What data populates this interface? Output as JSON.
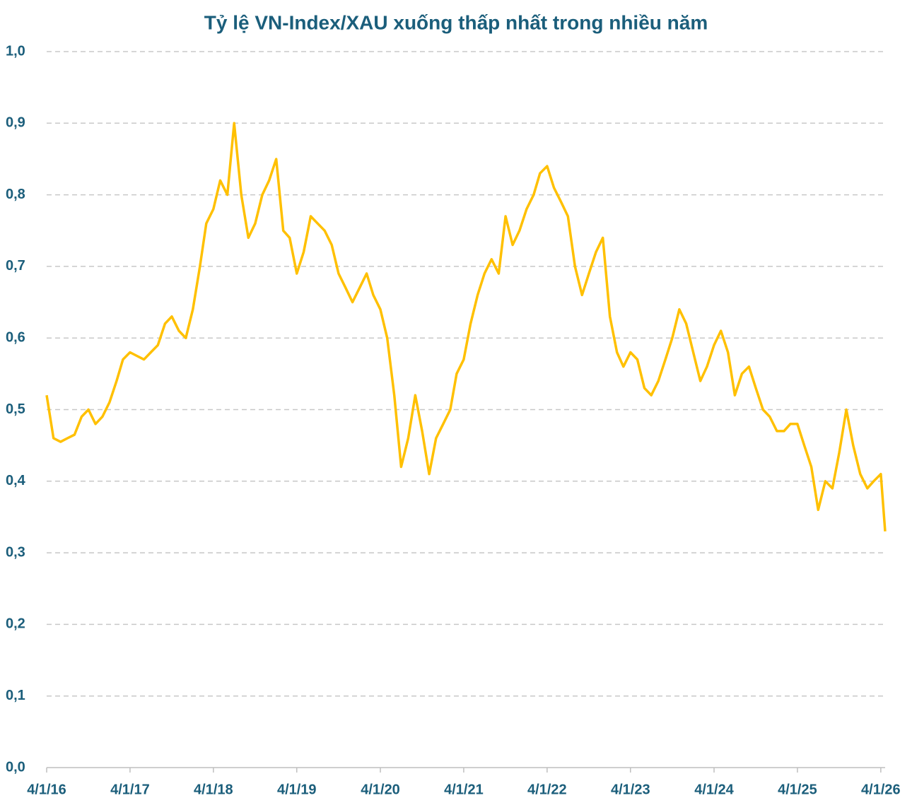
{
  "chart_data": {
    "type": "line",
    "title": "Tỷ lệ VN-Index/XAU xuống thấp nhất trong nhiều năm",
    "x": [
      "4/1/16",
      "5/1/16",
      "6/1/16",
      "7/1/16",
      "8/1/16",
      "9/1/16",
      "10/1/16",
      "11/1/16",
      "12/1/16",
      "1/1/17",
      "2/1/17",
      "3/1/17",
      "4/1/17",
      "5/1/17",
      "6/1/17",
      "7/1/17",
      "8/1/17",
      "9/1/17",
      "10/1/17",
      "11/1/17",
      "12/1/17",
      "1/1/18",
      "2/1/18",
      "3/1/18",
      "4/1/18",
      "5/1/18",
      "6/1/18",
      "7/1/18",
      "8/1/18",
      "9/1/18",
      "10/1/18",
      "11/1/18",
      "12/1/18",
      "1/1/19",
      "2/1/19",
      "3/1/19",
      "4/1/19",
      "5/1/19",
      "6/1/19",
      "7/1/19",
      "8/1/19",
      "9/1/19",
      "10/1/19",
      "11/1/19",
      "12/1/19",
      "1/1/20",
      "2/1/20",
      "3/1/20",
      "4/1/20",
      "5/1/20",
      "6/1/20",
      "7/1/20",
      "8/1/20",
      "9/1/20",
      "10/1/20",
      "11/1/20",
      "12/1/20",
      "1/1/21",
      "2/1/21",
      "3/1/21",
      "4/1/21",
      "5/1/21",
      "6/1/21",
      "7/1/21",
      "8/1/21",
      "9/1/21",
      "10/1/21",
      "11/1/21",
      "12/1/21",
      "1/1/22",
      "2/1/22",
      "3/1/22",
      "4/1/22",
      "5/1/22",
      "6/1/22",
      "7/1/22",
      "8/1/22",
      "9/1/22",
      "10/1/22",
      "11/1/22",
      "12/1/22",
      "1/1/23",
      "2/1/23",
      "3/1/23",
      "4/1/23",
      "5/1/23",
      "6/1/23",
      "7/1/23",
      "8/1/23",
      "9/1/23",
      "10/1/23",
      "11/1/23",
      "12/1/23",
      "1/1/24",
      "2/1/24",
      "3/1/24",
      "4/1/24",
      "5/1/24",
      "6/1/24",
      "7/1/24",
      "8/1/24",
      "9/1/24",
      "10/1/24",
      "11/1/24",
      "12/1/24",
      "1/1/25",
      "2/1/25",
      "3/1/25",
      "4/1/25",
      "5/1/25",
      "6/1/25",
      "7/1/25",
      "8/1/25",
      "9/1/25",
      "10/1/25",
      "11/1/25",
      "12/1/25",
      "1/1/26",
      "2/1/26",
      "3/1/26",
      "4/1/26",
      "4/20/26"
    ],
    "series": [
      {
        "name": "VN-Index/XAU",
        "color": "#ffc000",
        "values": [
          0.52,
          0.46,
          0.455,
          0.46,
          0.465,
          0.49,
          0.5,
          0.48,
          0.49,
          0.51,
          0.54,
          0.57,
          0.58,
          0.575,
          0.57,
          0.58,
          0.59,
          0.62,
          0.63,
          0.61,
          0.6,
          0.64,
          0.7,
          0.76,
          0.78,
          0.82,
          0.8,
          0.9,
          0.8,
          0.74,
          0.76,
          0.8,
          0.82,
          0.85,
          0.75,
          0.74,
          0.69,
          0.72,
          0.77,
          0.76,
          0.75,
          0.73,
          0.69,
          0.67,
          0.65,
          0.67,
          0.69,
          0.66,
          0.64,
          0.6,
          0.52,
          0.42,
          0.46,
          0.52,
          0.47,
          0.41,
          0.46,
          0.48,
          0.5,
          0.55,
          0.57,
          0.62,
          0.66,
          0.69,
          0.71,
          0.69,
          0.77,
          0.73,
          0.75,
          0.78,
          0.8,
          0.83,
          0.84,
          0.81,
          0.79,
          0.77,
          0.7,
          0.66,
          0.69,
          0.72,
          0.74,
          0.63,
          0.58,
          0.56,
          0.58,
          0.57,
          0.53,
          0.52,
          0.54,
          0.57,
          0.6,
          0.64,
          0.62,
          0.58,
          0.54,
          0.56,
          0.59,
          0.61,
          0.58,
          0.52,
          0.55,
          0.56,
          0.53,
          0.5,
          0.49,
          0.47,
          0.47,
          0.48,
          0.48,
          0.45,
          0.42,
          0.36,
          0.4,
          0.39,
          0.44,
          0.5,
          0.45,
          0.41,
          0.39,
          0.4,
          0.41,
          0.33
        ]
      }
    ],
    "xlim": [
      "4/1/16",
      "4/20/26"
    ],
    "xticks": [
      "4/1/16",
      "4/1/17",
      "4/1/18",
      "4/1/19",
      "4/1/20",
      "4/1/21",
      "4/1/22",
      "4/1/23",
      "4/1/24",
      "4/1/25",
      "4/1/26"
    ],
    "ylim": [
      0,
      1
    ],
    "yticks": [
      {
        "value": 0,
        "label": "0,0"
      },
      {
        "value": 0.1,
        "label": "0,1"
      },
      {
        "value": 0.2,
        "label": "0,2"
      },
      {
        "value": 0.3,
        "label": "0,3"
      },
      {
        "value": 0.4,
        "label": "0,4"
      },
      {
        "value": 0.5,
        "label": "0,5"
      },
      {
        "value": 0.6,
        "label": "0,6"
      },
      {
        "value": 0.7,
        "label": "0,7"
      },
      {
        "value": 0.8,
        "label": "0,8"
      },
      {
        "value": 0.9,
        "label": "0,9"
      },
      {
        "value": 1,
        "label": "1,0"
      }
    ],
    "grid": true
  }
}
